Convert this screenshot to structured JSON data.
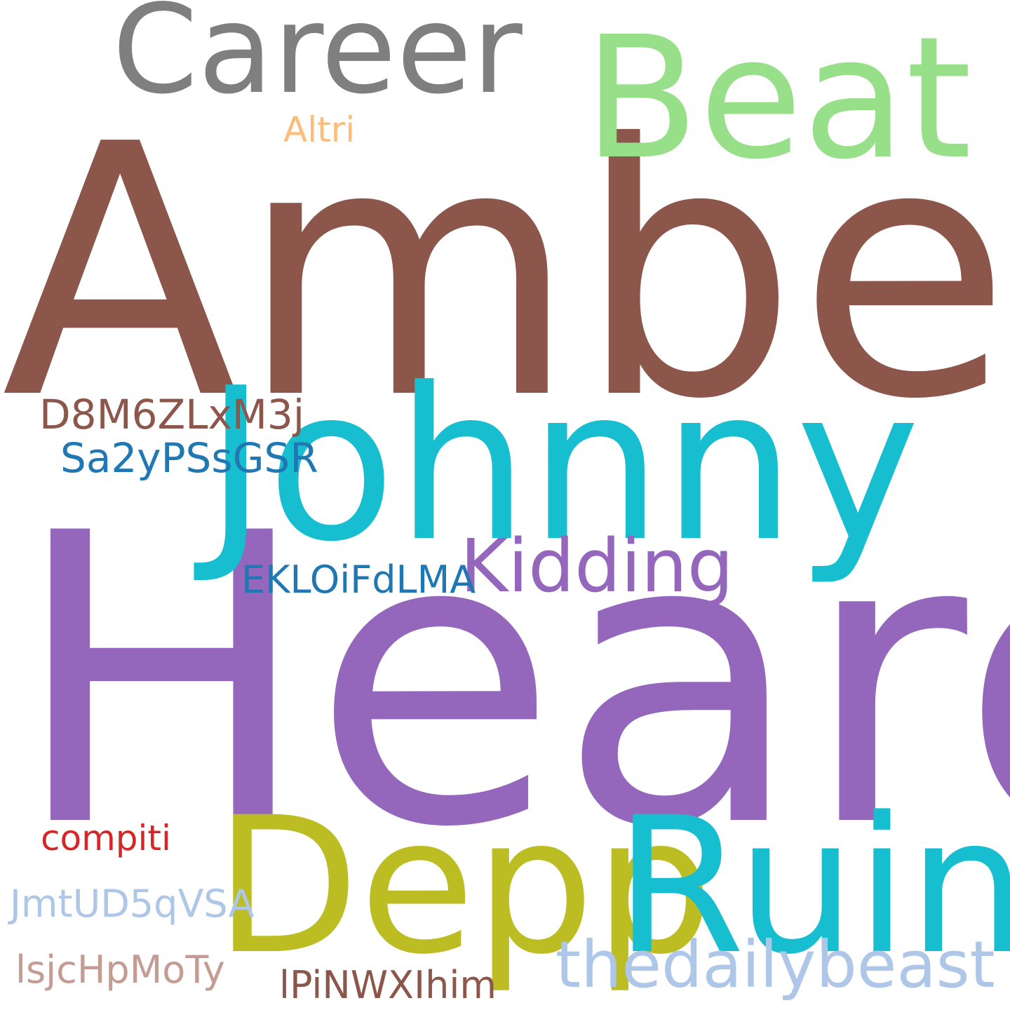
{
  "word_cloud": {
    "background": "#ffffff",
    "words": [
      {
        "text": "Amber",
        "color": "#8c564b"
      },
      {
        "text": "Heard",
        "color": "#9467bd"
      },
      {
        "text": "Johnny",
        "color": "#17becf"
      },
      {
        "text": "Career",
        "color": "#7f7f7f"
      },
      {
        "text": "Beat",
        "color": "#98df8a"
      },
      {
        "text": "Depp",
        "color": "#bcbd22"
      },
      {
        "text": "Ruin",
        "color": "#17becf"
      },
      {
        "text": "Kidding",
        "color": "#9467bd"
      },
      {
        "text": "thedailybeast",
        "color": "#aec7e8"
      },
      {
        "text": "Altri",
        "color": "#ffbb78"
      },
      {
        "text": "D8M6ZLxM3j",
        "color": "#8c564b"
      },
      {
        "text": "Sa2yPSsGSR",
        "color": "#1f77b4"
      },
      {
        "text": "EKLOiFdLMA",
        "color": "#1f77b4"
      },
      {
        "text": "compiti",
        "color": "#d62728"
      },
      {
        "text": "JmtUD5qVSA",
        "color": "#aec7e8"
      },
      {
        "text": "lsjcHpMoTy",
        "color": "#c49c94"
      },
      {
        "text": "lPiNWXIhim",
        "color": "#8c564b"
      }
    ]
  }
}
